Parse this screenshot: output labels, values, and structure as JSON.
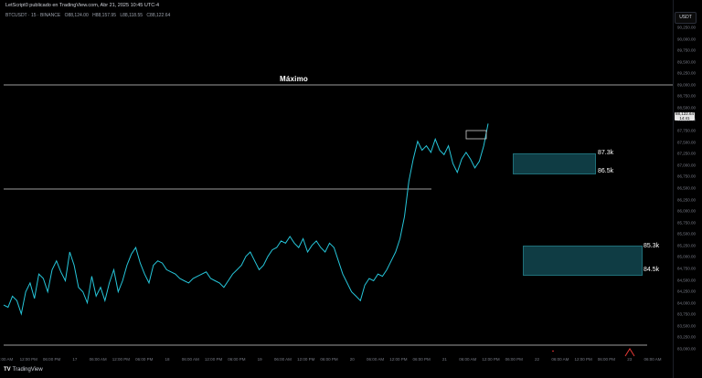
{
  "header": {
    "publisher_line": "LetScript0 publicado en TradingView.com, Abr 21, 2025 10:45 UTC-4",
    "symbol": "BTCUSDT · 15 · BINANCE",
    "ohlc": {
      "open": "O88,124.00",
      "high": "H88,157.95",
      "low": "L88,118.55",
      "close": "C88,122.64"
    },
    "currency": "USDT"
  },
  "price_tag": {
    "price": "88,122.64",
    "countdown": "14:41"
  },
  "annotations": {
    "max_label": "Máximo",
    "zone_upper": {
      "top_label": "87.3k",
      "bottom_label": "86.5k",
      "top": 87300,
      "bottom": 86500
    },
    "zone_lower": {
      "top_label": "85.3k",
      "bottom_label": "84.5k",
      "top": 85300,
      "bottom": 84500
    },
    "max_line_price": 88900,
    "mid_line_price": 86600
  },
  "y_axis": [
    "90,250.00",
    "90,000.00",
    "89,750.00",
    "89,500.00",
    "89,250.00",
    "89,000.00",
    "88,750.00",
    "88,500.00",
    "88,250.00",
    "87,750.00",
    "87,500.00",
    "87,250.00",
    "87,000.00",
    "86,750.00",
    "86,500.00",
    "86,250.00",
    "86,000.00",
    "85,750.00",
    "85,500.00",
    "85,250.00",
    "85,000.00",
    "84,750.00",
    "84,500.00",
    "84,250.00",
    "84,000.00",
    "83,750.00",
    "83,500.00",
    "83,250.00",
    "83,000.00"
  ],
  "x_axis": [
    "6:00 AM",
    "12:00 PM",
    "06:00 PM",
    "17",
    "06:00 AM",
    "12:00 PM",
    "06:00 PM",
    "18",
    "06:00 AM",
    "12:00 PM",
    "06:00 PM",
    "19",
    "06:00 AM",
    "12:00 PM",
    "06:00 PM",
    "20",
    "06:00 AM",
    "12:00 PM",
    "06:00 PM",
    "21",
    "06:00 AM",
    "12:00 PM",
    "06:00 PM",
    "22",
    "06:00 AM",
    "12:00 PM",
    "06:00 PM",
    "23",
    "06:00 AM"
  ],
  "chart_data": {
    "type": "line",
    "y_range": [
      82950,
      90400
    ],
    "series": [
      {
        "values": [
          84000,
          83950,
          84200,
          84100,
          83800,
          84300,
          84500,
          84150,
          84700,
          84600,
          84300,
          84800,
          85000,
          84750,
          84550,
          85200,
          84900,
          84400,
          84300,
          84050,
          84650,
          84200,
          84400,
          84100,
          84500,
          84800,
          84300,
          84550,
          84900,
          85150,
          85300,
          84950,
          84700,
          84500,
          84900,
          85000,
          84950,
          84800,
          84750,
          84700,
          84600,
          84550,
          84500,
          84600,
          84650,
          84700,
          84750,
          84600,
          84550,
          84500,
          84400,
          84550,
          84700,
          84800,
          84900,
          85100,
          85200,
          85000,
          84800,
          84900,
          85100,
          85250,
          85300,
          85450,
          85400,
          85550,
          85400,
          85300,
          85500,
          85200,
          85350,
          85450,
          85300,
          85200,
          85400,
          85300,
          85000,
          84700,
          84500,
          84300,
          84200,
          84100,
          84450,
          84600,
          84550,
          84700,
          84650,
          84800,
          85000,
          85200,
          85500,
          86000,
          86800,
          87300,
          87700,
          87500,
          87600,
          87450,
          87750,
          87500,
          87400,
          87600,
          87200,
          87000,
          87300,
          87450,
          87300,
          87100,
          87250,
          87600,
          88100
        ]
      }
    ]
  }
}
